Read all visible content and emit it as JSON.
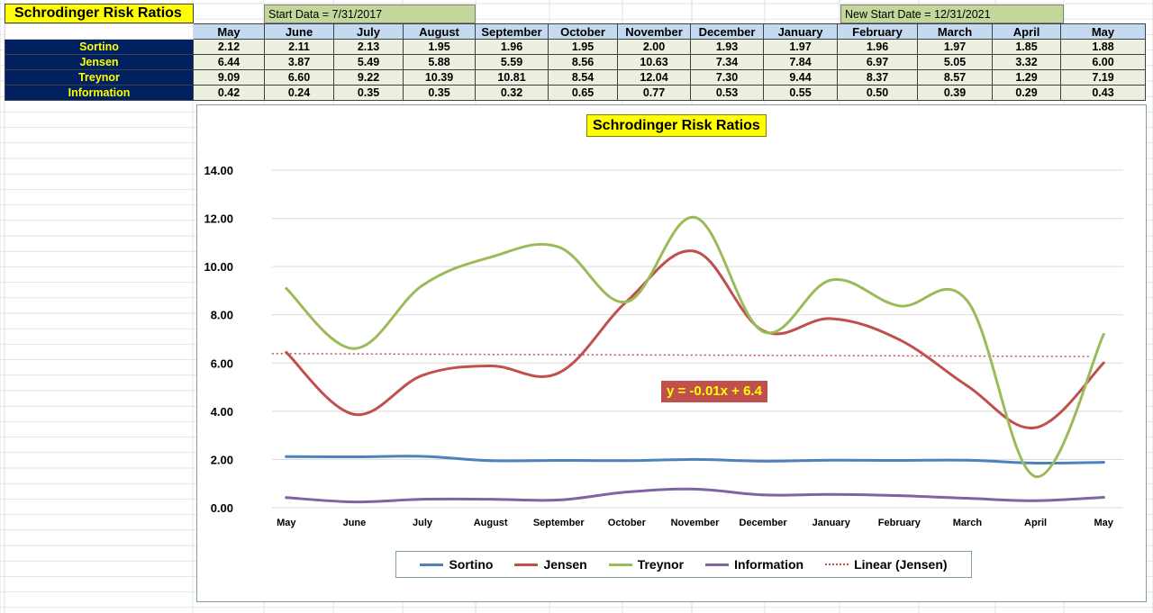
{
  "sheet": {
    "title": "Schrodinger Risk Ratios",
    "start_note": "Start Data = 7/31/2017",
    "new_start_note": "New Start Date = 12/31/2021"
  },
  "table": {
    "months": [
      "May",
      "June",
      "July",
      "August",
      "September",
      "October",
      "November",
      "December",
      "January",
      "February",
      "March",
      "April",
      "May"
    ],
    "rows": [
      {
        "label": "Sortino",
        "values": [
          "2.12",
          "2.11",
          "2.13",
          "1.95",
          "1.96",
          "1.95",
          "2.00",
          "1.93",
          "1.97",
          "1.96",
          "1.97",
          "1.85",
          "1.88"
        ]
      },
      {
        "label": "Jensen",
        "values": [
          "6.44",
          "3.87",
          "5.49",
          "5.88",
          "5.59",
          "8.56",
          "10.63",
          "7.34",
          "7.84",
          "6.97",
          "5.05",
          "3.32",
          "6.00"
        ]
      },
      {
        "label": "Treynor",
        "values": [
          "9.09",
          "6.60",
          "9.22",
          "10.39",
          "10.81",
          "8.54",
          "12.04",
          "7.30",
          "9.44",
          "8.37",
          "8.57",
          "1.29",
          "7.19"
        ]
      },
      {
        "label": "Information",
        "values": [
          "0.42",
          "0.24",
          "0.35",
          "0.35",
          "0.32",
          "0.65",
          "0.77",
          "0.53",
          "0.55",
          "0.50",
          "0.39",
          "0.29",
          "0.43"
        ]
      }
    ]
  },
  "chart_data": {
    "type": "line",
    "title": "Schrodinger Risk Ratios",
    "xlabel": "",
    "ylabel": "",
    "categories": [
      "May",
      "June",
      "July",
      "August",
      "September",
      "October",
      "November",
      "December",
      "January",
      "February",
      "March",
      "April",
      "May"
    ],
    "ylim": [
      0,
      14
    ],
    "yticks": [
      "0.00",
      "2.00",
      "4.00",
      "6.00",
      "8.00",
      "10.00",
      "12.00",
      "14.00"
    ],
    "grid": true,
    "legend_position": "bottom",
    "series": [
      {
        "name": "Sortino",
        "color": "#4f81bd",
        "values": [
          2.12,
          2.11,
          2.13,
          1.95,
          1.96,
          1.95,
          2.0,
          1.93,
          1.97,
          1.96,
          1.97,
          1.85,
          1.88
        ]
      },
      {
        "name": "Jensen",
        "color": "#c0504d",
        "values": [
          6.44,
          3.87,
          5.49,
          5.88,
          5.59,
          8.56,
          10.63,
          7.34,
          7.84,
          6.97,
          5.05,
          3.32,
          6.0
        ]
      },
      {
        "name": "Treynor",
        "color": "#9bbb59",
        "values": [
          9.09,
          6.6,
          9.22,
          10.39,
          10.81,
          8.54,
          12.04,
          7.3,
          9.44,
          8.37,
          8.57,
          1.29,
          7.19
        ]
      },
      {
        "name": "Information",
        "color": "#8064a2",
        "values": [
          0.42,
          0.24,
          0.35,
          0.35,
          0.32,
          0.65,
          0.77,
          0.53,
          0.55,
          0.5,
          0.39,
          0.29,
          0.43
        ]
      }
    ],
    "trendline": {
      "name": "Linear (Jensen)",
      "color": "#c0504d",
      "slope": -0.01,
      "intercept": 6.4,
      "label": "y = -0.01x + 6.4"
    }
  }
}
